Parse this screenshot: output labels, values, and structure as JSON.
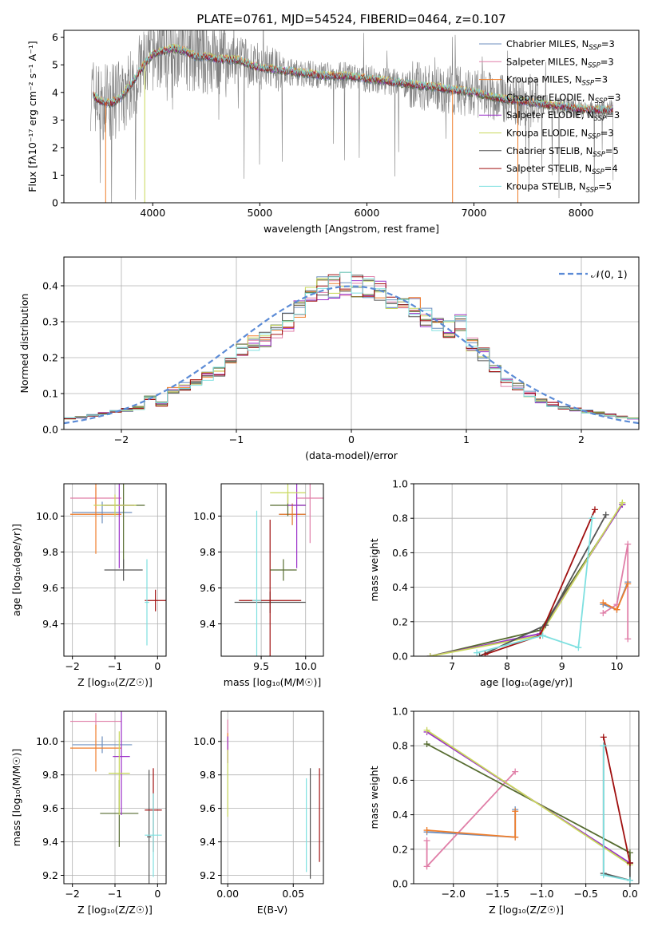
{
  "figure": {
    "title": "PLATE=0761, MJD=54524, FIBERID=0464, z=0.107"
  },
  "colors": {
    "Chabrier MILES": "#6d8fbf",
    "Salpeter MILES": "#e07fa8",
    "Kroupa MILES": "#ef7d2a",
    "Chabrier ELODIE": "#556b2f",
    "Salpeter ELODIE": "#9b30c9",
    "Kroupa ELODIE": "#c8d85a",
    "Chabrier STELIB": "#555555",
    "Salpeter STELIB": "#a01010",
    "Kroupa STELIB": "#7ee0e0",
    "data": "#808080",
    "normal": "#5b8bd6"
  },
  "chart_data": [
    {
      "id": "spectrum",
      "type": "line",
      "title": "PLATE=0761, MJD=54524, FIBERID=0464, z=0.107",
      "xlabel": "wavelength [Angstrom, rest frame]",
      "ylabel": "Flux [f_λ 10⁻¹⁷ erg cm⁻² s⁻¹ A⁻¹]",
      "xlim": [
        3170,
        8540
      ],
      "ylim": [
        0,
        6.25
      ],
      "xticks": [
        "4000",
        "5000",
        "6000",
        "7000",
        "8000"
      ],
      "yticks": [
        "0",
        "1",
        "2",
        "3",
        "4",
        "5",
        "6"
      ],
      "legend_position": "upper right",
      "legend": [
        {
          "sub": "Chabrier MILES",
          "tail": "=3"
        },
        {
          "sub": "Salpeter MILES",
          "tail": "=3"
        },
        {
          "sub": "Kroupa MILES",
          "tail": "=3"
        },
        {
          "sub": "Chabrier ELODIE",
          "tail": "=3"
        },
        {
          "sub": "Salpeter ELODIE",
          "tail": "=3"
        },
        {
          "sub": "Kroupa ELODIE",
          "tail": "=3"
        },
        {
          "sub": "Chabrier STELIB",
          "tail": "=5"
        },
        {
          "sub": "Salpeter STELIB",
          "tail": "=4"
        },
        {
          "sub": "Kroupa STELIB",
          "tail": "=5"
        }
      ],
      "legend_prefix": "N",
      "legend_subscript": "SSP",
      "continuum": {
        "x": [
          3420,
          3500,
          3600,
          3700,
          3800,
          3900,
          4000,
          4100,
          4200,
          4300,
          4400,
          4500,
          4600,
          4700,
          4800,
          4900,
          5000,
          5200,
          5400,
          5600,
          5800,
          6000,
          6200,
          6400,
          6600,
          6800,
          7000,
          7200,
          7400,
          7600,
          7800,
          8000,
          8200,
          8300
        ],
        "y": [
          4.0,
          3.7,
          3.6,
          3.8,
          4.3,
          4.9,
          5.4,
          5.5,
          5.6,
          5.5,
          5.3,
          5.3,
          5.2,
          5.2,
          5.2,
          5.0,
          4.9,
          4.8,
          4.7,
          4.6,
          4.6,
          4.5,
          4.4,
          4.3,
          4.2,
          4.1,
          4.0,
          3.8,
          3.7,
          3.6,
          3.5,
          3.4,
          3.35,
          3.4
        ]
      }
    },
    {
      "id": "residuals",
      "type": "step",
      "xlabel": "(data-model)/error",
      "ylabel": "Normed distribution",
      "xlim": [
        -2.5,
        2.5
      ],
      "ylim": [
        0,
        0.48
      ],
      "xticks": [
        "−2",
        "−1",
        "0",
        "1",
        "2"
      ],
      "yticks": [
        "0.0",
        "0.1",
        "0.2",
        "0.3",
        "0.4"
      ],
      "bin_edges": [
        -2.5,
        -2.4,
        -2.3,
        -2.2,
        -2.1,
        -2.0,
        -1.9,
        -1.8,
        -1.7,
        -1.6,
        -1.5,
        -1.4,
        -1.3,
        -1.2,
        -1.1,
        -1.0,
        -0.9,
        -0.8,
        -0.7,
        -0.6,
        -0.5,
        -0.4,
        -0.3,
        -0.2,
        -0.1,
        0.0,
        0.1,
        0.2,
        0.3,
        0.4,
        0.5,
        0.6,
        0.7,
        0.8,
        0.9,
        1.0,
        1.1,
        1.2,
        1.3,
        1.4,
        1.5,
        1.6,
        1.7,
        1.8,
        1.9,
        2.0,
        2.1,
        2.2,
        2.3,
        2.4,
        2.5
      ],
      "histogram": [
        0.03,
        0.035,
        0.04,
        0.045,
        0.05,
        0.055,
        0.06,
        0.09,
        0.07,
        0.11,
        0.12,
        0.13,
        0.15,
        0.16,
        0.19,
        0.22,
        0.24,
        0.25,
        0.28,
        0.3,
        0.34,
        0.37,
        0.39,
        0.4,
        0.41,
        0.4,
        0.4,
        0.38,
        0.37,
        0.35,
        0.34,
        0.31,
        0.3,
        0.28,
        0.3,
        0.24,
        0.21,
        0.17,
        0.13,
        0.12,
        0.1,
        0.08,
        0.07,
        0.06,
        0.055,
        0.05,
        0.045,
        0.04,
        0.035,
        0.03
      ],
      "normal_label": "𝒩(0, 1)"
    },
    {
      "id": "age_vs_Z",
      "type": "errorbar",
      "xlabel": "Z [log₁₀(Z/Z☉)]",
      "ylabel": "age  [log₁₀(age/yr)]",
      "xlim": [
        -2.2,
        0.2
      ],
      "ylim": [
        9.22,
        10.18
      ],
      "xticks": [
        -2,
        -1,
        0
      ],
      "yticks": [
        9.4,
        9.6,
        9.8,
        10.0
      ],
      "points": [
        {
          "m": "Chabrier MILES",
          "x": -1.3,
          "xe": 0.7,
          "y": 10.02,
          "ye": 0.06
        },
        {
          "m": "Salpeter MILES",
          "x": -1.45,
          "xe": 0.6,
          "y": 10.1,
          "ye": 0.06
        },
        {
          "m": "Kroupa MILES",
          "x": -1.45,
          "xe": 0.6,
          "y": 10.01,
          "ye": 0.22
        },
        {
          "m": "Chabrier ELODIE",
          "x": -0.8,
          "xe": 0.5,
          "y": 10.06,
          "ye": 0.35
        },
        {
          "m": "Salpeter ELODIE",
          "x": -0.9,
          "xe": 0.35,
          "y": 10.06,
          "ye": 0.35
        },
        {
          "m": "Kroupa ELODIE",
          "x": -1.0,
          "xe": 0.5,
          "y": 10.06,
          "ye": 0.06
        },
        {
          "m": "Chabrier STELIB",
          "x": -0.8,
          "xe": 0.45,
          "y": 9.7,
          "ye": 0.06
        },
        {
          "m": "Salpeter STELIB",
          "x": -0.05,
          "xe": 0.25,
          "y": 9.53,
          "ye": 0.06
        },
        {
          "m": "Kroupa STELIB",
          "x": -0.25,
          "xe": 0.05,
          "y": 9.52,
          "ye": 0.24
        }
      ]
    },
    {
      "id": "age_vs_mass",
      "type": "errorbar",
      "xlabel": "mass [log₁₀(M/M☉)]",
      "ylabel": "",
      "xlim": [
        9.05,
        10.2
      ],
      "ylim": [
        9.22,
        10.18
      ],
      "xticks": [
        9.5,
        10.0
      ],
      "yticks": [
        9.4,
        9.6,
        9.8,
        10.0
      ],
      "points": [
        {
          "m": "Chabrier MILES",
          "x": 9.85,
          "xe": 0.15,
          "y": 10.01,
          "ye": 0.06
        },
        {
          "m": "Salpeter MILES",
          "x": 10.05,
          "xe": 0.15,
          "y": 10.1,
          "ye": 0.25
        },
        {
          "m": "Kroupa MILES",
          "x": 9.85,
          "xe": 0.15,
          "y": 10.01,
          "ye": 0.06
        },
        {
          "m": "Chabrier ELODIE",
          "x": 9.8,
          "xe": 0.2,
          "y": 10.06,
          "ye": 0.06
        },
        {
          "m": "Salpeter ELODIE",
          "x": 9.9,
          "xe": 0.1,
          "y": 10.06,
          "ye": 0.35
        },
        {
          "m": "Kroupa ELODIE",
          "x": 9.8,
          "xe": 0.2,
          "y": 10.13,
          "ye": 0.06
        },
        {
          "m": "Chabrier STELIB",
          "x": 9.6,
          "xe": 0.4,
          "y": 9.52,
          "ye": 0.06
        },
        {
          "m": "Salpeter STELIB",
          "x": 9.6,
          "xe": 0.35,
          "y": 9.53,
          "ye": 0.45
        },
        {
          "m": "Kroupa STELIB",
          "x": 9.45,
          "xe": 0.05,
          "y": 9.53,
          "ye": 0.5
        },
        {
          "m": "Chabrier ELODIE",
          "x": 9.75,
          "xe": 0.15,
          "y": 9.7,
          "ye": 0.06
        }
      ]
    },
    {
      "id": "weight_vs_age",
      "type": "line",
      "xlabel": "age  [log₁₀(age/yr)]",
      "ylabel": "mass weight",
      "xlim": [
        6.3,
        10.4
      ],
      "ylim": [
        0,
        1.0
      ],
      "xticks": [
        7,
        8,
        9,
        10
      ],
      "yticks": [
        0.0,
        0.2,
        0.4,
        0.6,
        0.8,
        1.0
      ],
      "series": [
        {
          "m": "Chabrier MILES",
          "x": [
            9.75,
            10.0,
            10.2
          ],
          "y": [
            0.3,
            0.27,
            0.43
          ]
        },
        {
          "m": "Salpeter MILES",
          "x": [
            9.75,
            10.0,
            10.2,
            10.2
          ],
          "y": [
            0.25,
            0.3,
            0.65,
            0.1
          ]
        },
        {
          "m": "Kroupa MILES",
          "x": [
            9.75,
            10.0,
            10.2
          ],
          "y": [
            0.31,
            0.27,
            0.42
          ]
        },
        {
          "m": "Chabrier ELODIE",
          "x": [
            6.6,
            8.6,
            10.1
          ],
          "y": [
            0.0,
            0.15,
            0.88
          ]
        },
        {
          "m": "Salpeter ELODIE",
          "x": [
            6.6,
            8.6,
            10.1
          ],
          "y": [
            0.0,
            0.13,
            0.88
          ]
        },
        {
          "m": "Kroupa ELODIE",
          "x": [
            6.6,
            8.6,
            10.1
          ],
          "y": [
            0.0,
            0.12,
            0.89
          ]
        },
        {
          "m": "Chabrier STELIB",
          "x": [
            7.5,
            8.7,
            9.8
          ],
          "y": [
            0.0,
            0.18,
            0.82
          ]
        },
        {
          "m": "Salpeter STELIB",
          "x": [
            7.6,
            8.6,
            9.6
          ],
          "y": [
            0.01,
            0.12,
            0.85
          ]
        },
        {
          "m": "Kroupa STELIB",
          "x": [
            7.45,
            8.65,
            9.3,
            9.55
          ],
          "y": [
            0.02,
            0.12,
            0.05,
            0.8
          ]
        }
      ]
    },
    {
      "id": "mass_vs_Z",
      "type": "errorbar",
      "xlabel": "Z [log₁₀(Z/Z☉)]",
      "ylabel": "mass [log₁₀(M/M☉)]",
      "xlim": [
        -2.2,
        0.2
      ],
      "ylim": [
        9.15,
        10.18
      ],
      "xticks": [
        -2,
        -1,
        0
      ],
      "yticks": [
        9.2,
        9.4,
        9.6,
        9.8,
        10.0
      ],
      "points": [
        {
          "m": "Chabrier MILES",
          "x": -1.3,
          "xe": 0.7,
          "y": 9.98,
          "ye": 0.05
        },
        {
          "m": "Salpeter MILES",
          "x": -1.45,
          "xe": 0.6,
          "y": 10.12,
          "ye": 0.05
        },
        {
          "m": "Kroupa MILES",
          "x": -1.45,
          "xe": 0.6,
          "y": 9.96,
          "ye": 0.14
        },
        {
          "m": "Chabrier ELODIE",
          "x": -0.9,
          "xe": 0.45,
          "y": 9.57,
          "ye": 0.2
        },
        {
          "m": "Salpeter ELODIE",
          "x": -0.85,
          "xe": 0.2,
          "y": 9.91,
          "ye": 0.35
        },
        {
          "m": "Kroupa ELODIE",
          "x": -0.9,
          "xe": 0.25,
          "y": 9.81,
          "ye": 0.25
        },
        {
          "m": "Chabrier STELIB",
          "x": -0.2,
          "xe": 0.05,
          "y": 9.43,
          "ye": 0.4
        },
        {
          "m": "Salpeter STELIB",
          "x": -0.1,
          "xe": 0.2,
          "y": 9.59,
          "ye": 0.25
        },
        {
          "m": "Kroupa STELIB",
          "x": -0.1,
          "xe": 0.2,
          "y": 9.44,
          "ye": 0.25
        }
      ]
    },
    {
      "id": "mass_vs_ebv",
      "type": "errorbar",
      "xlabel": "E(B-V)",
      "ylabel": "",
      "xlim": [
        -0.005,
        0.073
      ],
      "ylim": [
        9.15,
        10.18
      ],
      "xticks": [
        0.0,
        0.05
      ],
      "yticks": [
        9.2,
        9.4,
        9.6,
        9.8,
        10.0
      ],
      "points": [
        {
          "m": "Salpeter MILES",
          "x": 0.0,
          "xe": 0,
          "y": 10.0,
          "ye": 0.13
        },
        {
          "m": "Kroupa MILES",
          "x": 0.0,
          "xe": 0,
          "y": 9.97,
          "ye": 0.08
        },
        {
          "m": "Salpeter ELODIE",
          "x": 0.0,
          "xe": 0,
          "y": 9.95,
          "ye": 0.08
        },
        {
          "m": "Kroupa ELODIE",
          "x": 0.0,
          "xe": 0,
          "y": 9.75,
          "ye": 0.2
        },
        {
          "m": "Chabrier STELIB",
          "x": 0.063,
          "xe": 0,
          "y": 9.51,
          "ye": 0.33
        },
        {
          "m": "Salpeter STELIB",
          "x": 0.07,
          "xe": 0,
          "y": 9.56,
          "ye": 0.28
        },
        {
          "m": "Kroupa STELIB",
          "x": 0.06,
          "xe": 0,
          "y": 9.5,
          "ye": 0.28
        }
      ]
    },
    {
      "id": "weight_vs_Z",
      "type": "line",
      "xlabel": "Z [log₁₀(Z/Z☉)]",
      "ylabel": "mass weight",
      "xlim": [
        -2.45,
        0.1
      ],
      "ylim": [
        0,
        1.0
      ],
      "xticks": [
        "−2.0",
        "−1.5",
        "−1.0",
        "−0.5",
        "0.0"
      ],
      "xtick_values": [
        -2.0,
        -1.5,
        -1.0,
        -0.5,
        0.0
      ],
      "yticks": [
        0.0,
        0.2,
        0.4,
        0.6,
        0.8,
        1.0
      ],
      "series": [
        {
          "m": "Chabrier MILES",
          "x": [
            -2.3,
            -1.3,
            -1.3
          ],
          "y": [
            0.3,
            0.27,
            0.43
          ]
        },
        {
          "m": "Salpeter MILES",
          "x": [
            -2.3,
            -2.3,
            -1.3
          ],
          "y": [
            0.25,
            0.1,
            0.65
          ]
        },
        {
          "m": "Kroupa MILES",
          "x": [
            -2.3,
            -1.3,
            -1.3
          ],
          "y": [
            0.31,
            0.27,
            0.42
          ]
        },
        {
          "m": "Chabrier ELODIE",
          "x": [
            -2.3,
            0.0,
            0.0
          ],
          "y": [
            0.81,
            0.18,
            0.12
          ]
        },
        {
          "m": "Salpeter ELODIE",
          "x": [
            -2.3,
            0.0
          ],
          "y": [
            0.88,
            0.12
          ]
        },
        {
          "m": "Kroupa ELODIE",
          "x": [
            -2.3,
            0.0
          ],
          "y": [
            0.89,
            0.11
          ]
        },
        {
          "m": "Chabrier STELIB",
          "x": [
            -0.3,
            -0.3,
            0.0,
            0.0
          ],
          "y": [
            0.8,
            0.06,
            0.02,
            0.12
          ]
        },
        {
          "m": "Salpeter STELIB",
          "x": [
            -0.3,
            0.0
          ],
          "y": [
            0.85,
            0.12
          ]
        },
        {
          "m": "Kroupa STELIB",
          "x": [
            -0.3,
            -0.3,
            0.0
          ],
          "y": [
            0.8,
            0.05,
            0.02
          ]
        }
      ]
    }
  ]
}
